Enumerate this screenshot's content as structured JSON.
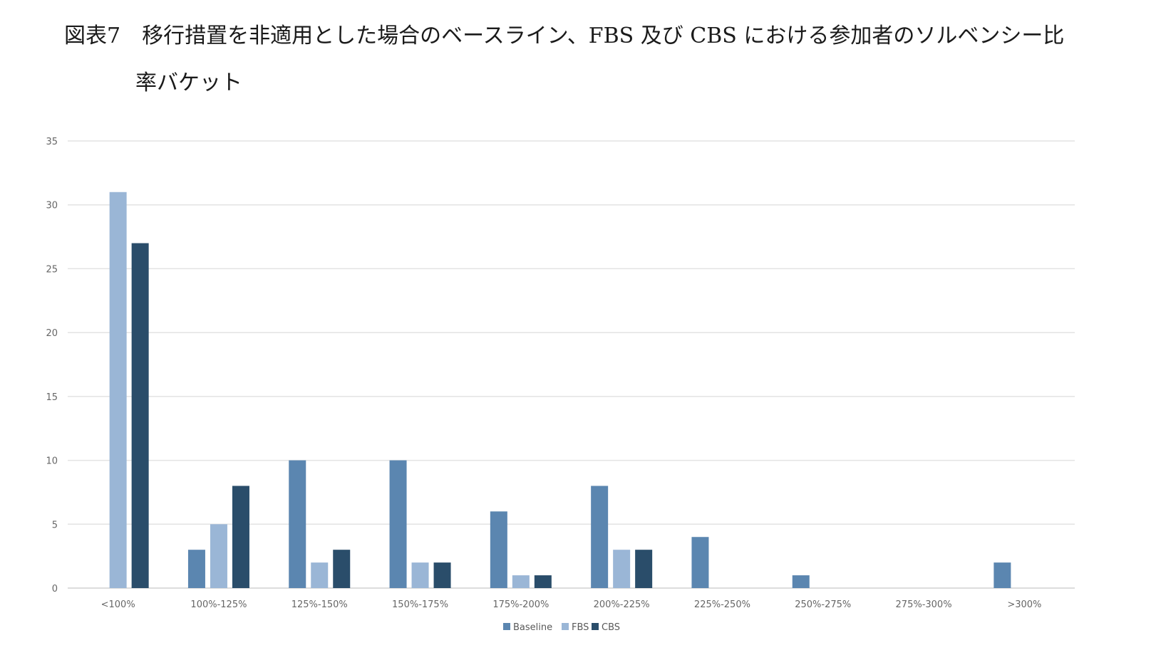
{
  "title": {
    "line1": "図表7　移行措置を非適用とした場合のベースライン、FBS 及び CBS における参加者のソルベンシー比",
    "line2": "率バケット"
  },
  "chart_data": {
    "type": "bar",
    "categories": [
      "<100%",
      "100%-125%",
      "125%-150%",
      "150%-175%",
      "175%-200%",
      "200%-225%",
      "225%-250%",
      "250%-275%",
      "275%-300%",
      ">300%"
    ],
    "series": [
      {
        "name": "Baseline",
        "color": "#5b86b0",
        "values": [
          0,
          3,
          10,
          10,
          6,
          8,
          4,
          1,
          0,
          2
        ]
      },
      {
        "name": "FBS",
        "color": "#9ab6d6",
        "values": [
          31,
          5,
          2,
          2,
          1,
          3,
          0,
          0,
          0,
          0
        ]
      },
      {
        "name": "CBS",
        "color": "#2a4d6a",
        "values": [
          27,
          8,
          3,
          2,
          1,
          3,
          0,
          0,
          0,
          0
        ]
      }
    ],
    "yticks": [
      "0",
      "5",
      "10",
      "15",
      "20",
      "25",
      "30",
      "35"
    ],
    "ylim": [
      0,
      35
    ],
    "grid": true,
    "legend_position": "bottom"
  }
}
